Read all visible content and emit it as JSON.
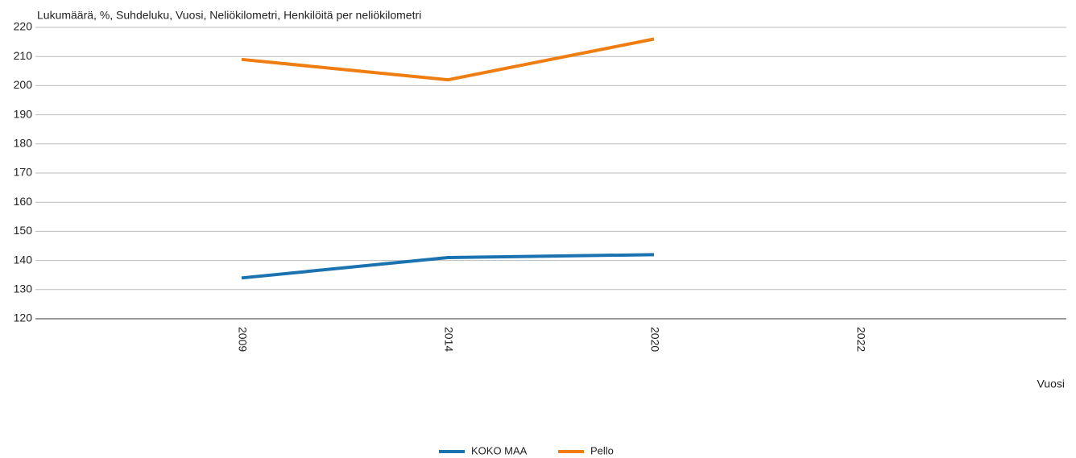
{
  "chart_data": {
    "type": "line",
    "y_label": "Lukumäärä, %, Suhdeluku, Vuosi, Neliökilometri, Henkilöitä per neliökilometri",
    "x_label": "Vuosi",
    "categories": [
      "2009",
      "2014",
      "2020",
      "2022"
    ],
    "series": [
      {
        "name": "KOKO MAA",
        "color": "#1a72b0",
        "values": [
          134,
          141,
          142,
          null
        ]
      },
      {
        "name": "Pello",
        "color": "#ef7d12",
        "values": [
          209,
          202,
          216,
          null
        ]
      }
    ],
    "ylim": [
      120,
      220
    ],
    "yticks": [
      120,
      130,
      140,
      150,
      160,
      170,
      180,
      190,
      200,
      210,
      220
    ],
    "grid": true,
    "legend": "bottom"
  }
}
